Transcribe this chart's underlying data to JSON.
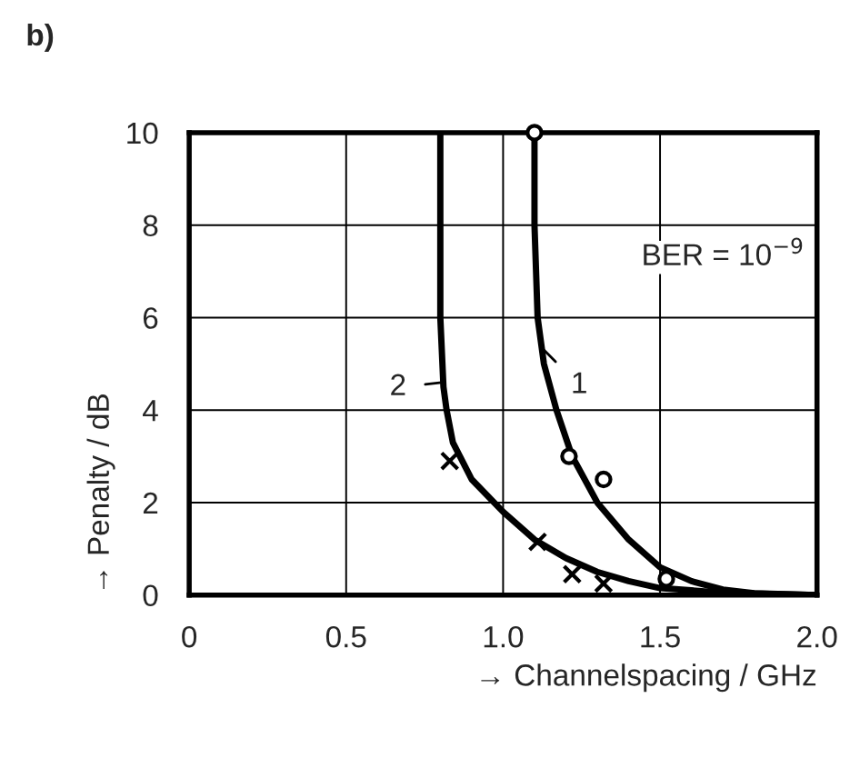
{
  "chart_data": {
    "type": "line",
    "title": "b)",
    "xlabel": "→ Channelspacing / GHz",
    "ylabel": "→ Penalty / dB",
    "xlim": [
      0,
      2.0
    ],
    "ylim": [
      0,
      10
    ],
    "xticks": [
      {
        "value": 0,
        "label": "0"
      },
      {
        "value": 0.5,
        "label": "0.5"
      },
      {
        "value": 1.0,
        "label": "1.0"
      },
      {
        "value": 1.5,
        "label": "1.5"
      },
      {
        "value": 2.0,
        "label": "2.0"
      }
    ],
    "yticks": [
      0,
      2,
      4,
      6,
      8,
      10
    ],
    "grid": true,
    "series": [
      {
        "marker": "none",
        "color": "#000000",
        "x": [
          1.1,
          1.1,
          1.11,
          1.13,
          1.17,
          1.22,
          1.3,
          1.4,
          1.5,
          1.6,
          1.7,
          1.8,
          2.0
        ],
        "values": [
          10,
          8,
          6,
          5,
          4,
          3,
          2,
          1.2,
          0.6,
          0.3,
          0.12,
          0.04,
          0
        ]
      },
      {
        "marker": "none",
        "color": "#000000",
        "x": [
          0.8,
          0.8,
          0.81,
          0.82,
          0.84,
          0.9,
          1.0,
          1.1,
          1.2,
          1.3,
          1.4,
          1.5,
          1.7,
          2.0
        ],
        "values": [
          10,
          6,
          4.5,
          4,
          3.3,
          2.5,
          1.8,
          1.2,
          0.8,
          0.5,
          0.3,
          0.15,
          0.05,
          0
        ]
      },
      {
        "type": "scatter",
        "marker": "circle",
        "color": "#000000",
        "x": [
          1.1,
          1.21,
          1.32,
          1.52
        ],
        "values": [
          10,
          3.0,
          2.5,
          0.35
        ]
      },
      {
        "type": "scatter",
        "marker": "cross",
        "color": "#000000",
        "x": [
          0.83,
          1.11,
          1.22,
          1.32
        ],
        "values": [
          2.9,
          1.15,
          0.45,
          0.25
        ]
      }
    ],
    "annotations": [
      {
        "text": "1",
        "x": 1.13,
        "y": 5.3
      },
      {
        "text": "2",
        "x": 0.81,
        "y": 4.6
      },
      "BER = 10$^{−9}$"
    ]
  }
}
